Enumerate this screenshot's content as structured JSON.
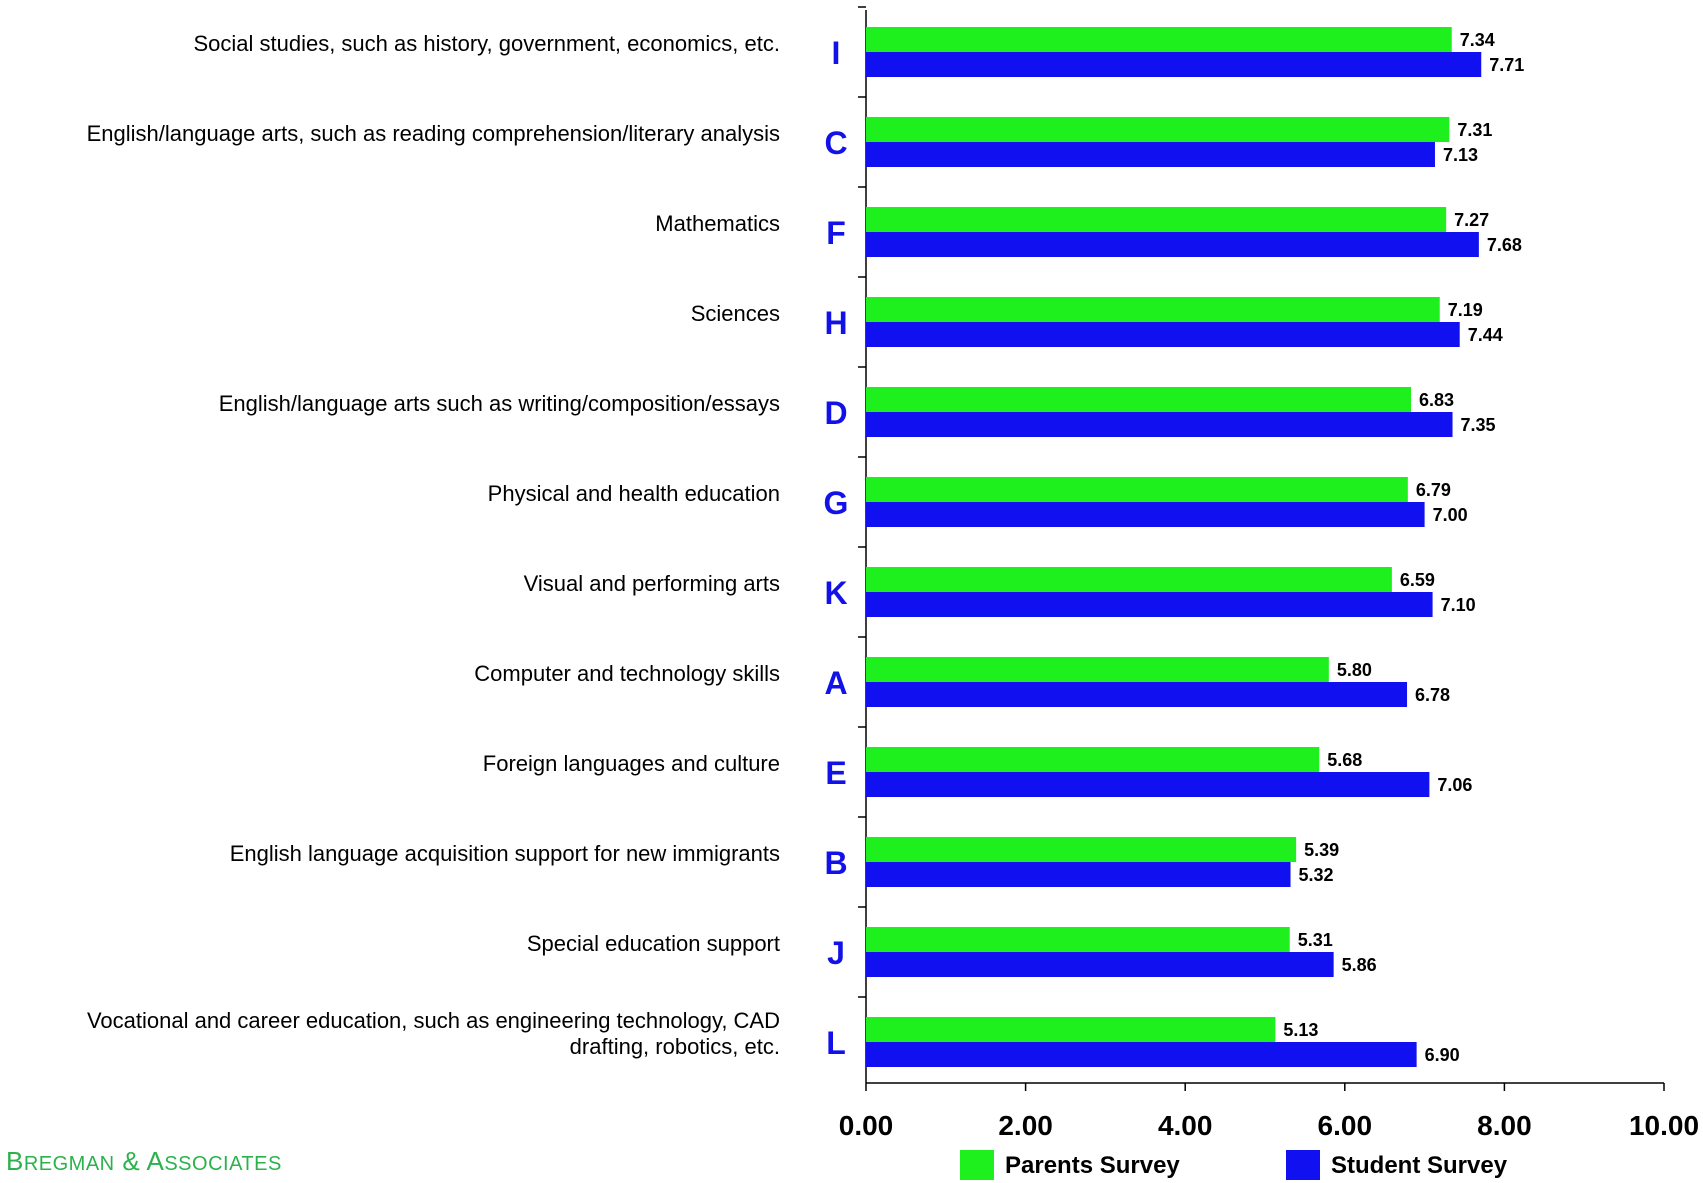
{
  "branding": {
    "name": "Bregman & Associates"
  },
  "chart_data": {
    "type": "bar",
    "orientation": "horizontal",
    "xlim": [
      0,
      10
    ],
    "x_ticks": [
      "0.00",
      "2.00",
      "4.00",
      "6.00",
      "8.00",
      "10.00"
    ],
    "categories": [
      {
        "code": "I",
        "label": [
          "Social studies, such as history, government, economics, etc."
        ]
      },
      {
        "code": "C",
        "label": [
          "English/language arts, such as reading comprehension/literary analysis"
        ]
      },
      {
        "code": "F",
        "label": [
          "Mathematics"
        ]
      },
      {
        "code": "H",
        "label": [
          "Sciences"
        ]
      },
      {
        "code": "D",
        "label": [
          "English/language arts such as writing/composition/essays"
        ]
      },
      {
        "code": "G",
        "label": [
          "Physical and health education"
        ]
      },
      {
        "code": "K",
        "label": [
          "Visual and performing arts"
        ]
      },
      {
        "code": "A",
        "label": [
          "Computer and technology skills"
        ]
      },
      {
        "code": "E",
        "label": [
          "Foreign languages and culture"
        ]
      },
      {
        "code": "B",
        "label": [
          "English language acquisition support for new immigrants"
        ]
      },
      {
        "code": "J",
        "label": [
          "Special education support"
        ]
      },
      {
        "code": "L",
        "label": [
          "Vocational and career education, such as engineering technology, CAD",
          "drafting, robotics, etc."
        ]
      }
    ],
    "series": [
      {
        "name": "Parents Survey",
        "color": "#1ef01e",
        "values": [
          7.34,
          7.31,
          7.27,
          7.19,
          6.83,
          6.79,
          6.59,
          5.8,
          5.68,
          5.39,
          5.31,
          5.13
        ],
        "labels": [
          "7.34",
          "7.31",
          "7.27",
          "7.19",
          "6.83",
          "6.79",
          "6.59",
          "5.80",
          "5.68",
          "5.39",
          "5.31",
          "5.13"
        ]
      },
      {
        "name": "Student Survey",
        "color": "#1010f0",
        "values": [
          7.71,
          7.13,
          7.68,
          7.44,
          7.35,
          7.0,
          7.1,
          6.78,
          7.06,
          5.32,
          5.86,
          6.9
        ],
        "labels": [
          "7.71",
          "7.13",
          "7.68",
          "7.44",
          "7.35",
          "7.00",
          "7.10",
          "6.78",
          "7.06",
          "5.32",
          "5.86",
          "6.90"
        ]
      }
    ],
    "code_color": "#1212e8",
    "legend_position": "bottom"
  }
}
